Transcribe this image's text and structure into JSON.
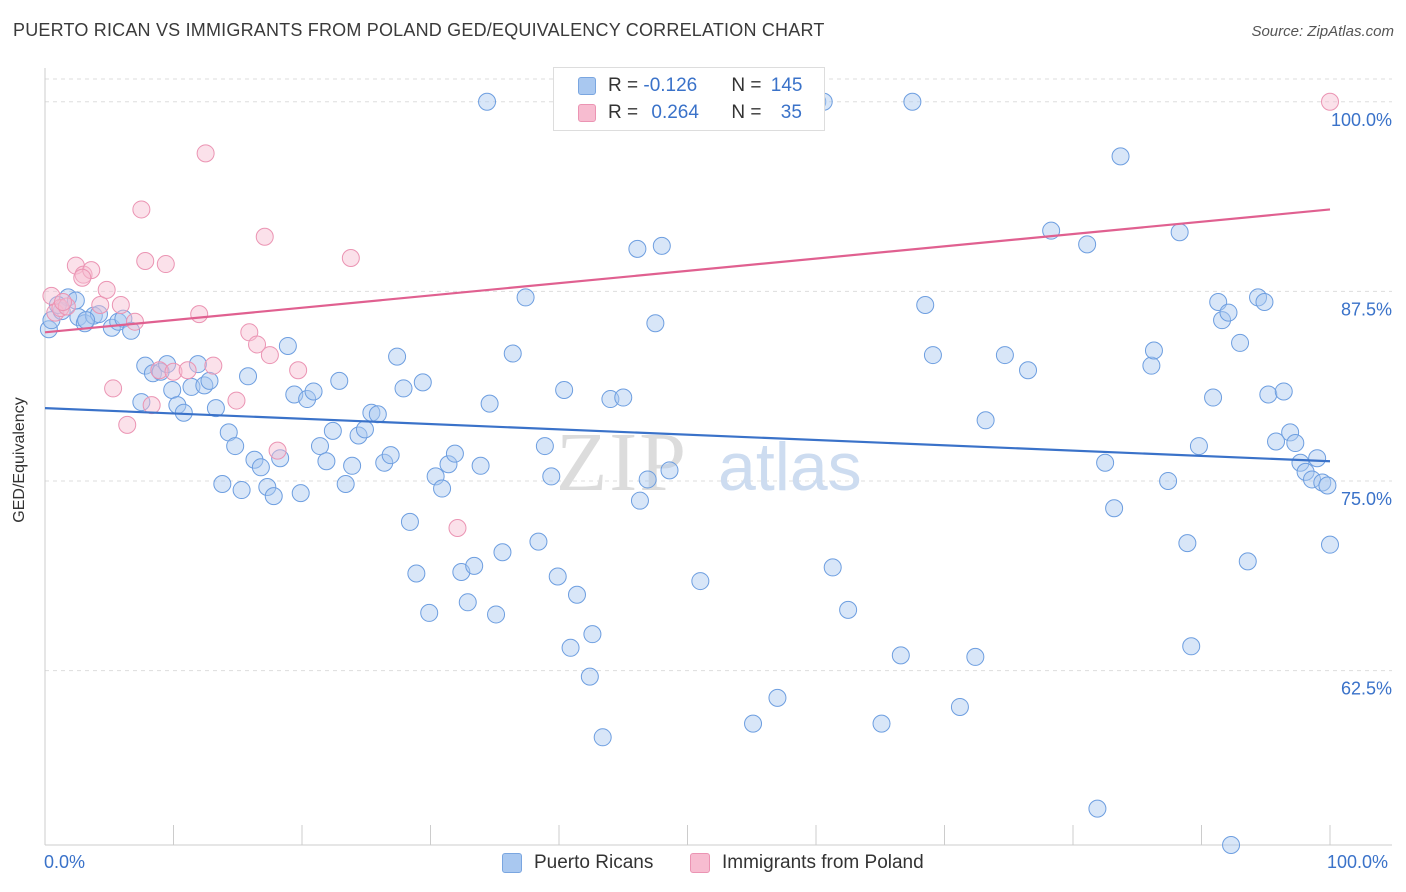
{
  "title": "PUERTO RICAN VS IMMIGRANTS FROM POLAND GED/EQUIVALENCY CORRELATION CHART",
  "source": "Source: ZipAtlas.com",
  "colors": {
    "blue": "#3a72c9",
    "blue_fill": "#a9c8f0",
    "pink": "#e06090",
    "pink_fill": "#f7bcd0",
    "grid": "#dddddd"
  },
  "legend": {
    "row1": {
      "r_label": "R = ",
      "r_value": "-0.126",
      "n_label": "N = ",
      "n_value": "145"
    },
    "row2": {
      "r_label": "R = ",
      "r_value": "0.264",
      "n_label": "N = ",
      "n_value": "35"
    }
  },
  "bottom_legend": {
    "series1": "Puerto Ricans",
    "series2": "Immigrants from Poland"
  },
  "chart_data": {
    "type": "scatter",
    "title": "PUERTO RICAN VS IMMIGRANTS FROM POLAND GED/EQUIVALENCY CORRELATION CHART",
    "xlabel": "",
    "ylabel": "GED/Equivalency",
    "xlim": [
      0,
      100
    ],
    "ylim": [
      51.0,
      101.5
    ],
    "x_tick_labels": [
      "0.0%",
      "100.0%"
    ],
    "y_ticks": [
      62.5,
      75.0,
      87.5,
      100.0
    ],
    "y_tick_labels": [
      "62.5%",
      "75.0%",
      "87.5%",
      "100.0%"
    ],
    "grid": true,
    "legend_position": "top-center",
    "watermark": "ZIPatlas",
    "series": [
      {
        "name": "Puerto Ricans",
        "color": "#3a72c9",
        "r": -0.126,
        "n": 145,
        "trend": {
          "x": [
            0,
            100
          ],
          "y": [
            79.8,
            76.3
          ]
        },
        "points": [
          [
            0.3,
            85.0
          ],
          [
            0.5,
            85.6
          ],
          [
            1.3,
            86.2
          ],
          [
            1.8,
            87.1
          ],
          [
            2.6,
            85.8
          ],
          [
            3.1,
            85.4
          ],
          [
            3.8,
            85.9
          ],
          [
            4.2,
            86.0
          ],
          [
            5.2,
            85.1
          ],
          [
            5.7,
            85.5
          ],
          [
            6.1,
            85.7
          ],
          [
            6.7,
            84.9
          ],
          [
            7.5,
            80.2
          ],
          [
            7.8,
            82.6
          ],
          [
            8.4,
            82.1
          ],
          [
            9.0,
            82.2
          ],
          [
            9.5,
            82.7
          ],
          [
            9.9,
            81.0
          ],
          [
            10.3,
            80.0
          ],
          [
            10.8,
            79.5
          ],
          [
            11.4,
            81.2
          ],
          [
            11.9,
            82.7
          ],
          [
            12.4,
            81.3
          ],
          [
            12.8,
            81.6
          ],
          [
            13.3,
            79.8
          ],
          [
            13.8,
            74.8
          ],
          [
            14.3,
            78.2
          ],
          [
            14.8,
            77.3
          ],
          [
            15.3,
            74.4
          ],
          [
            15.8,
            81.9
          ],
          [
            16.3,
            76.4
          ],
          [
            16.8,
            75.9
          ],
          [
            17.3,
            74.6
          ],
          [
            17.8,
            74.0
          ],
          [
            18.3,
            76.5
          ],
          [
            18.9,
            83.9
          ],
          [
            19.4,
            80.7
          ],
          [
            19.9,
            74.2
          ],
          [
            20.4,
            80.4
          ],
          [
            20.9,
            80.9
          ],
          [
            21.4,
            77.3
          ],
          [
            21.9,
            76.3
          ],
          [
            22.4,
            78.3
          ],
          [
            22.9,
            81.6
          ],
          [
            23.4,
            74.8
          ],
          [
            23.9,
            76.0
          ],
          [
            24.4,
            78.0
          ],
          [
            24.9,
            78.4
          ],
          [
            25.4,
            79.5
          ],
          [
            25.9,
            79.4
          ],
          [
            26.4,
            76.2
          ],
          [
            26.9,
            76.7
          ],
          [
            27.4,
            83.2
          ],
          [
            27.9,
            81.1
          ],
          [
            28.4,
            72.3
          ],
          [
            28.9,
            68.9
          ],
          [
            29.4,
            81.5
          ],
          [
            29.9,
            66.3
          ],
          [
            30.4,
            75.3
          ],
          [
            30.9,
            74.5
          ],
          [
            31.4,
            76.1
          ],
          [
            31.9,
            76.8
          ],
          [
            32.4,
            69.0
          ],
          [
            32.9,
            67.0
          ],
          [
            33.4,
            69.4
          ],
          [
            33.9,
            76.0
          ],
          [
            34.4,
            100.0
          ],
          [
            34.6,
            80.1
          ],
          [
            35.1,
            66.2
          ],
          [
            35.6,
            70.3
          ],
          [
            36.4,
            83.4
          ],
          [
            37.4,
            87.1
          ],
          [
            38.4,
            71.0
          ],
          [
            38.9,
            77.3
          ],
          [
            39.4,
            75.3
          ],
          [
            39.9,
            68.7
          ],
          [
            40.4,
            81.0
          ],
          [
            40.9,
            64.0
          ],
          [
            41.4,
            67.5
          ],
          [
            42.4,
            62.1
          ],
          [
            42.6,
            64.9
          ],
          [
            43.4,
            58.1
          ],
          [
            44.0,
            80.4
          ],
          [
            45.0,
            80.5
          ],
          [
            46.1,
            90.3
          ],
          [
            46.3,
            73.7
          ],
          [
            46.9,
            75.1
          ],
          [
            47.5,
            85.4
          ],
          [
            48.0,
            90.5
          ],
          [
            48.6,
            75.7
          ],
          [
            51.0,
            68.4
          ],
          [
            53.6,
            100.0
          ],
          [
            55.1,
            59.0
          ],
          [
            57.0,
            60.7
          ],
          [
            60.1,
            100.0
          ],
          [
            60.6,
            100.0
          ],
          [
            61.3,
            69.3
          ],
          [
            62.5,
            66.5
          ],
          [
            65.1,
            59.0
          ],
          [
            66.6,
            63.5
          ],
          [
            67.5,
            100.0
          ],
          [
            68.5,
            86.6
          ],
          [
            69.1,
            83.3
          ],
          [
            71.2,
            60.1
          ],
          [
            72.4,
            63.4
          ],
          [
            73.2,
            79.0
          ],
          [
            74.7,
            83.3
          ],
          [
            76.5,
            82.3
          ],
          [
            78.3,
            91.5
          ],
          [
            81.1,
            90.6
          ],
          [
            81.9,
            53.4
          ],
          [
            82.5,
            76.2
          ],
          [
            83.2,
            73.2
          ],
          [
            83.7,
            96.4
          ],
          [
            86.1,
            82.6
          ],
          [
            86.3,
            83.6
          ],
          [
            87.4,
            75.0
          ],
          [
            88.3,
            91.4
          ],
          [
            88.9,
            70.9
          ],
          [
            89.2,
            64.1
          ],
          [
            89.8,
            77.3
          ],
          [
            90.9,
            80.5
          ],
          [
            91.3,
            86.8
          ],
          [
            91.6,
            85.6
          ],
          [
            92.1,
            86.1
          ],
          [
            92.3,
            51.0
          ],
          [
            93.0,
            84.1
          ],
          [
            93.6,
            69.7
          ],
          [
            94.4,
            87.1
          ],
          [
            94.9,
            86.8
          ],
          [
            95.2,
            80.7
          ],
          [
            95.8,
            77.6
          ],
          [
            96.4,
            80.9
          ],
          [
            96.9,
            78.2
          ],
          [
            97.3,
            77.5
          ],
          [
            97.7,
            76.2
          ],
          [
            98.1,
            75.6
          ],
          [
            98.6,
            75.1
          ],
          [
            99.0,
            76.5
          ],
          [
            99.4,
            74.9
          ],
          [
            99.8,
            74.7
          ],
          [
            100.0,
            70.8
          ],
          [
            1.0,
            86.6
          ],
          [
            2.4,
            86.9
          ],
          [
            3.2,
            85.6
          ]
        ]
      },
      {
        "name": "Immigrants from Poland",
        "color": "#e06090",
        "r": 0.264,
        "n": 35,
        "trend": {
          "x": [
            0,
            100
          ],
          "y": [
            84.8,
            92.9
          ]
        },
        "points": [
          [
            0.5,
            87.2
          ],
          [
            0.8,
            86.1
          ],
          [
            1.2,
            86.4
          ],
          [
            1.7,
            86.5
          ],
          [
            2.4,
            89.2
          ],
          [
            3.0,
            88.6
          ],
          [
            3.6,
            88.9
          ],
          [
            4.3,
            86.6
          ],
          [
            4.8,
            87.6
          ],
          [
            5.3,
            81.1
          ],
          [
            5.9,
            86.6
          ],
          [
            6.4,
            78.7
          ],
          [
            7.0,
            85.5
          ],
          [
            7.5,
            92.9
          ],
          [
            7.8,
            89.5
          ],
          [
            8.3,
            80.0
          ],
          [
            8.9,
            82.3
          ],
          [
            9.4,
            89.3
          ],
          [
            10.0,
            82.2
          ],
          [
            11.1,
            82.3
          ],
          [
            12.0,
            86.0
          ],
          [
            12.5,
            96.6
          ],
          [
            13.1,
            82.6
          ],
          [
            14.9,
            80.3
          ],
          [
            15.9,
            84.8
          ],
          [
            16.5,
            84.0
          ],
          [
            17.1,
            91.1
          ],
          [
            17.5,
            83.3
          ],
          [
            18.1,
            77.0
          ],
          [
            19.7,
            82.3
          ],
          [
            23.8,
            89.7
          ],
          [
            32.1,
            71.9
          ],
          [
            100.0,
            100.0
          ],
          [
            1.4,
            86.8
          ],
          [
            2.9,
            88.4
          ]
        ]
      }
    ]
  }
}
